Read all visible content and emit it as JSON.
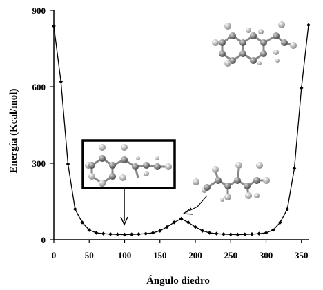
{
  "chart_data": {
    "type": "line",
    "xlabel": "Ángulo diedro",
    "ylabel": "Energía (Kcal/mol)",
    "xlim": [
      0,
      360
    ],
    "ylim": [
      0,
      900
    ],
    "xticks": [
      0,
      50,
      100,
      150,
      200,
      250,
      300,
      350
    ],
    "yticks": [
      0,
      300,
      600,
      900
    ],
    "grid": false,
    "legend": "none",
    "marker": "diamond",
    "line_color": "#000000",
    "series": [
      {
        "x": [
          0,
          10,
          20,
          30,
          40,
          50,
          60,
          70,
          80,
          90,
          100,
          110,
          120,
          130,
          140,
          150,
          160,
          170,
          180,
          190,
          200,
          210,
          220,
          230,
          240,
          250,
          260,
          270,
          280,
          290,
          300,
          310,
          320,
          330,
          340,
          350,
          360
        ],
        "y": [
          838,
          620,
          297,
          120,
          68,
          38,
          27,
          24,
          22,
          21,
          20,
          21,
          22,
          24,
          27,
          35,
          50,
          68,
          82,
          68,
          50,
          35,
          27,
          24,
          22,
          21,
          20,
          21,
          22,
          24,
          27,
          38,
          68,
          120,
          280,
          595,
          842
        ]
      }
    ],
    "annotations": [
      {
        "type": "boxed-molecule-arrow",
        "target_x": 100
      },
      {
        "type": "molecule-arrow",
        "target_x": 180
      },
      {
        "type": "molecule",
        "location": "top-right"
      }
    ]
  }
}
